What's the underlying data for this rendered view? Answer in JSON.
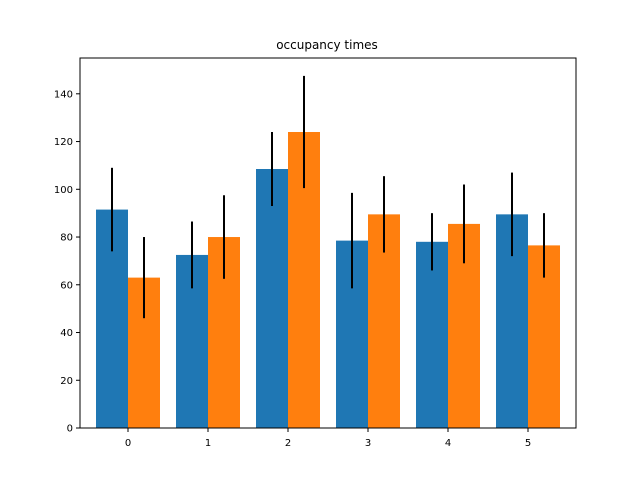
{
  "chart_data": {
    "type": "bar",
    "title": "occupancy times",
    "xlabel": "",
    "ylabel": "",
    "categories": [
      "0",
      "1",
      "2",
      "3",
      "4",
      "5"
    ],
    "series": [
      {
        "color": "#1f77b4",
        "values": [
          91.5,
          72.5,
          108.5,
          78.5,
          78.0,
          89.5
        ],
        "errors": [
          17.5,
          14.0,
          15.5,
          20.0,
          12.0,
          17.5
        ]
      },
      {
        "color": "#ff7f0e",
        "values": [
          63.0,
          80.0,
          124.0,
          89.5,
          85.5,
          76.5
        ],
        "errors": [
          17.0,
          17.5,
          23.5,
          16.0,
          16.5,
          13.5
        ]
      }
    ],
    "ylim": [
      0,
      155
    ],
    "yticks": [
      0,
      20,
      40,
      60,
      80,
      100,
      120,
      140
    ],
    "grid": false,
    "legend": "none"
  }
}
